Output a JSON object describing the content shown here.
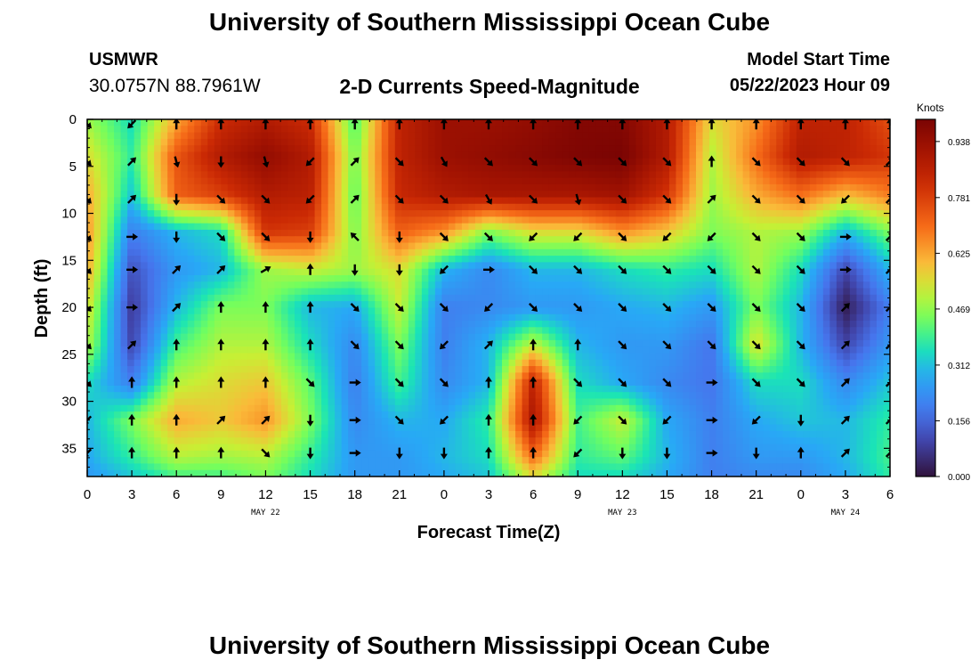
{
  "header": {
    "title": "University of Southern Mississippi Ocean Cube",
    "station": "USMWR",
    "coordinates": "30.0757N  88.7961W",
    "subtitle": "2-D Currents Speed-Magnitude",
    "model_start_label": "Model Start Time",
    "model_start_time": "05/22/2023 Hour 09"
  },
  "footer": {
    "title": "University of Southern Mississippi Ocean Cube"
  },
  "chart_data": {
    "type": "heatmap",
    "xlabel": "Forecast Time(Z)",
    "ylabel": "Depth (ft)",
    "x_tick_labels": [
      "0",
      "3",
      "6",
      "9",
      "12",
      "15",
      "18",
      "21",
      "0",
      "3",
      "6",
      "9",
      "12",
      "15",
      "18",
      "21",
      "0",
      "3",
      "6"
    ],
    "x_range_hours": [
      0,
      54
    ],
    "date_labels": [
      {
        "hour": 12,
        "text": "MAY 22"
      },
      {
        "hour": 36,
        "text": "MAY 23"
      },
      {
        "hour": 51,
        "text": "MAY 24"
      }
    ],
    "y_ticks": [
      0,
      5,
      10,
      15,
      20,
      25,
      30,
      35
    ],
    "y_range": [
      0,
      38
    ],
    "y_inverted": true,
    "colorbar": {
      "unit": "Knots",
      "min": 0.0,
      "max": 1.0,
      "tick_labels": [
        "0.000",
        "0.156",
        "0.312",
        "0.469",
        "0.625",
        "0.781",
        "0.938"
      ],
      "tick_values": [
        0.0,
        0.156,
        0.312,
        0.469,
        0.625,
        0.781,
        0.938
      ],
      "colormap": "turbo"
    },
    "grid_hours": [
      0,
      3,
      6,
      9,
      12,
      15,
      18,
      21,
      24,
      27,
      30,
      33,
      36,
      39,
      42,
      45,
      48,
      51,
      54
    ],
    "grid_depths": [
      0,
      4,
      8,
      12,
      16,
      20,
      24,
      28,
      32,
      36,
      38
    ],
    "speed_knots": [
      [
        0.48,
        0.35,
        0.62,
        0.82,
        0.88,
        0.82,
        0.4,
        0.85,
        0.93,
        0.93,
        0.95,
        0.98,
        0.98,
        0.88,
        0.55,
        0.65,
        0.85,
        0.85,
        0.75
      ],
      [
        0.55,
        0.38,
        0.74,
        0.88,
        0.95,
        0.88,
        0.44,
        0.85,
        0.93,
        0.95,
        0.97,
        0.99,
        1.0,
        0.88,
        0.5,
        0.7,
        0.88,
        0.85,
        0.8
      ],
      [
        0.62,
        0.32,
        0.72,
        0.78,
        0.88,
        0.86,
        0.42,
        0.83,
        0.88,
        0.9,
        0.9,
        0.9,
        0.92,
        0.8,
        0.48,
        0.62,
        0.7,
        0.6,
        0.68
      ],
      [
        0.65,
        0.2,
        0.3,
        0.35,
        0.8,
        0.78,
        0.45,
        0.72,
        0.65,
        0.45,
        0.55,
        0.55,
        0.65,
        0.58,
        0.45,
        0.5,
        0.48,
        0.3,
        0.45
      ],
      [
        0.62,
        0.12,
        0.25,
        0.3,
        0.48,
        0.52,
        0.48,
        0.55,
        0.3,
        0.22,
        0.3,
        0.3,
        0.35,
        0.38,
        0.35,
        0.5,
        0.35,
        0.1,
        0.3
      ],
      [
        0.55,
        0.08,
        0.3,
        0.45,
        0.45,
        0.3,
        0.28,
        0.52,
        0.2,
        0.22,
        0.25,
        0.25,
        0.28,
        0.3,
        0.25,
        0.45,
        0.3,
        0.02,
        0.2
      ],
      [
        0.5,
        0.1,
        0.4,
        0.5,
        0.5,
        0.35,
        0.22,
        0.45,
        0.2,
        0.3,
        0.52,
        0.3,
        0.25,
        0.25,
        0.18,
        0.55,
        0.3,
        0.1,
        0.25
      ],
      [
        0.35,
        0.2,
        0.5,
        0.55,
        0.58,
        0.42,
        0.2,
        0.4,
        0.22,
        0.3,
        0.85,
        0.35,
        0.28,
        0.22,
        0.18,
        0.35,
        0.35,
        0.22,
        0.32
      ],
      [
        0.3,
        0.45,
        0.62,
        0.58,
        0.65,
        0.45,
        0.22,
        0.3,
        0.28,
        0.38,
        0.9,
        0.4,
        0.52,
        0.28,
        0.2,
        0.28,
        0.32,
        0.3,
        0.38
      ],
      [
        0.28,
        0.38,
        0.5,
        0.48,
        0.5,
        0.38,
        0.25,
        0.25,
        0.3,
        0.35,
        0.7,
        0.38,
        0.42,
        0.3,
        0.2,
        0.25,
        0.25,
        0.3,
        0.4
      ],
      [
        0.25,
        0.32,
        0.4,
        0.4,
        0.45,
        0.35,
        0.25,
        0.25,
        0.28,
        0.32,
        0.55,
        0.35,
        0.35,
        0.28,
        0.2,
        0.22,
        0.22,
        0.28,
        0.38
      ]
    ],
    "arrow_hours": [
      0,
      3,
      6,
      9,
      12,
      15,
      18,
      21,
      24,
      27,
      30,
      33,
      36,
      39,
      42,
      45,
      48,
      51,
      54
    ],
    "arrow_depths": [
      0.5,
      4.5,
      8.5,
      12.5,
      16,
      20,
      24,
      28,
      32,
      35.5
    ],
    "arrow_angles_deg": [
      [
        135,
        225,
        0,
        0,
        0,
        0,
        0,
        0,
        0,
        0,
        0,
        0,
        0,
        0,
        0,
        0,
        0,
        0,
        0
      ],
      [
        135,
        45,
        165,
        180,
        165,
        225,
        45,
        135,
        150,
        135,
        135,
        135,
        135,
        135,
        0,
        135,
        135,
        135,
        45
      ],
      [
        135,
        45,
        180,
        135,
        135,
        225,
        45,
        135,
        135,
        150,
        135,
        165,
        135,
        135,
        45,
        135,
        135,
        225,
        45
      ],
      [
        135,
        90,
        180,
        135,
        135,
        180,
        315,
        180,
        135,
        135,
        225,
        225,
        135,
        225,
        225,
        135,
        135,
        90,
        45
      ],
      [
        135,
        90,
        45,
        45,
        60,
        0,
        180,
        180,
        225,
        90,
        135,
        135,
        135,
        135,
        135,
        135,
        135,
        90,
        45
      ],
      [
        135,
        90,
        45,
        0,
        0,
        0,
        135,
        135,
        135,
        225,
        135,
        135,
        135,
        135,
        135,
        135,
        135,
        45,
        45
      ],
      [
        135,
        45,
        0,
        0,
        0,
        0,
        135,
        135,
        225,
        45,
        0,
        0,
        135,
        135,
        135,
        135,
        135,
        45,
        45
      ],
      [
        135,
        0,
        0,
        0,
        0,
        135,
        90,
        135,
        135,
        0,
        0,
        135,
        135,
        135,
        90,
        135,
        135,
        45,
        45
      ],
      [
        225,
        0,
        0,
        45,
        45,
        180,
        90,
        135,
        225,
        0,
        0,
        225,
        135,
        225,
        90,
        225,
        180,
        45,
        45
      ],
      [
        225,
        0,
        0,
        0,
        135,
        180,
        90,
        180,
        180,
        0,
        0,
        225,
        180,
        180,
        90,
        180,
        0,
        45,
        45
      ]
    ]
  }
}
